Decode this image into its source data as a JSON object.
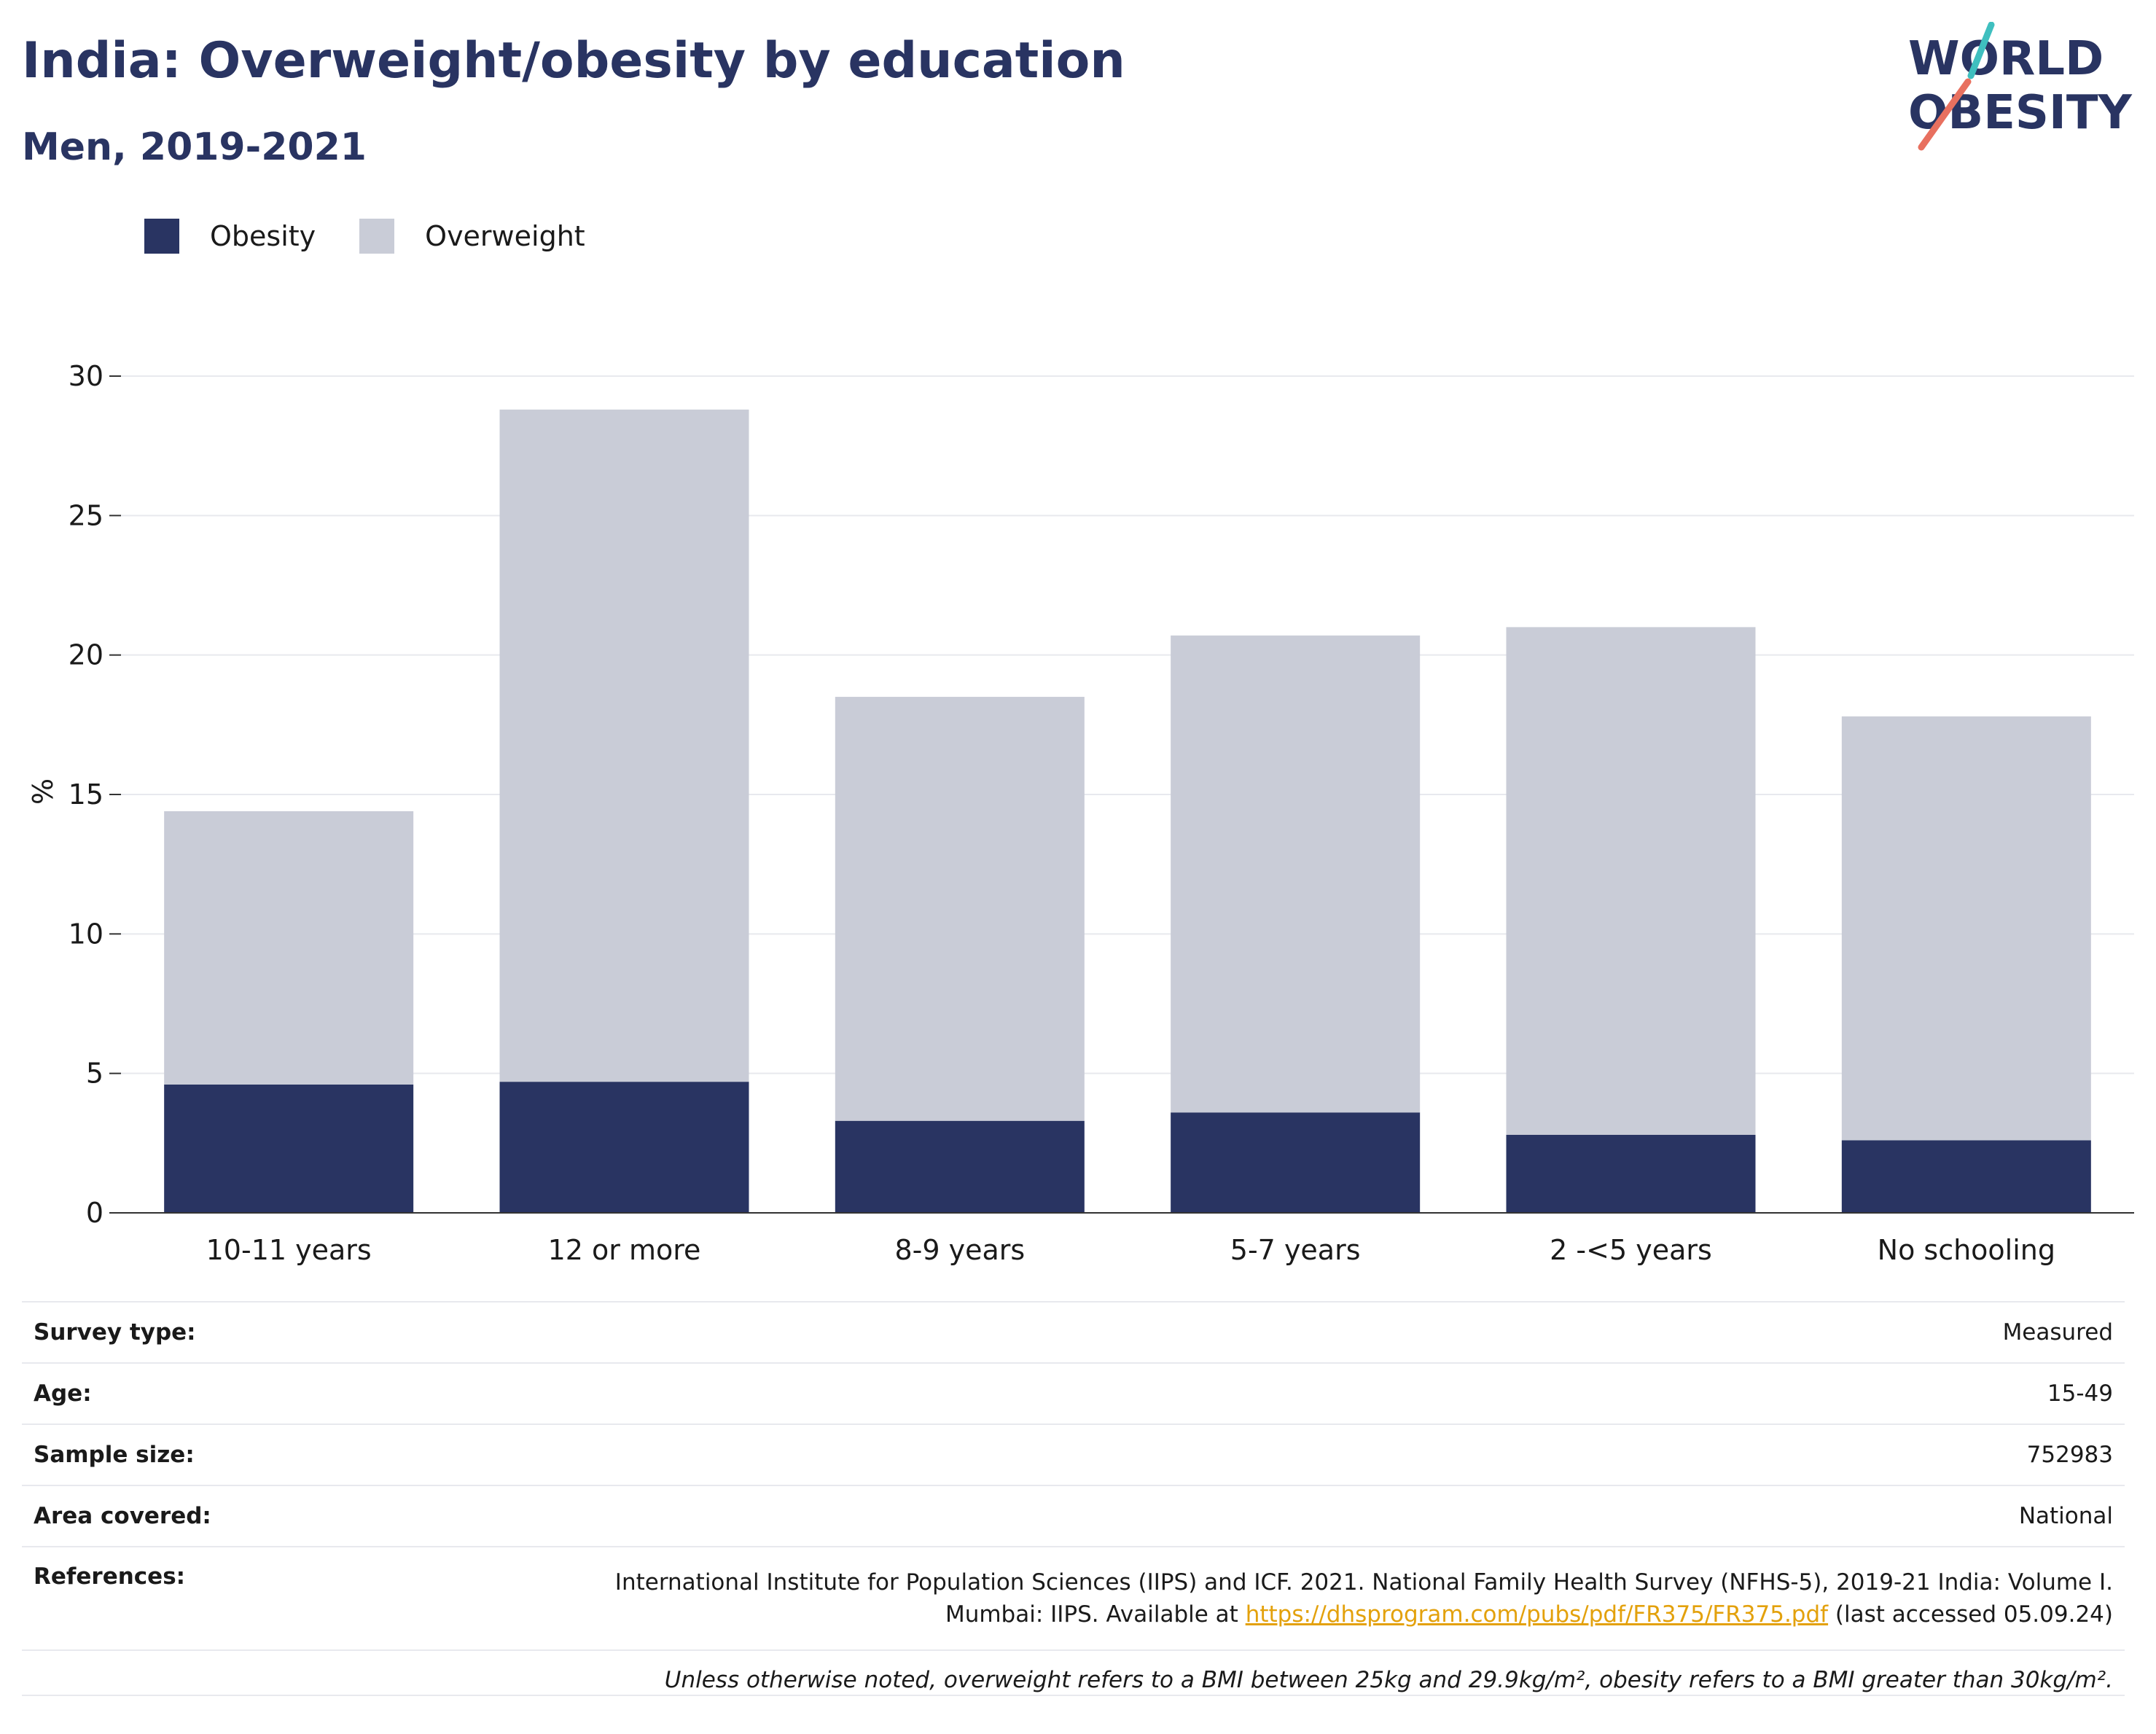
{
  "title": "India: Overweight/obesity by education",
  "subtitle": "Men, 2019-2021",
  "logo": {
    "line1": "WORLD",
    "line2": "OBESITY",
    "accent_teal": "#3fbfbf",
    "accent_coral": "#e8705f"
  },
  "colors": {
    "obesity": "#293462",
    "overweight": "#c9ccd7",
    "title": "#293462",
    "link": "#e3a10c"
  },
  "legend": [
    {
      "label": "Obesity",
      "color": "#293462"
    },
    {
      "label": "Overweight",
      "color": "#c9ccd7"
    }
  ],
  "chart_data": {
    "type": "bar",
    "stacked": true,
    "categories": [
      "10-11 years",
      "12 or more",
      "8-9 years",
      "5-7 years",
      "2 -<5 years",
      "No schooling"
    ],
    "series": [
      {
        "name": "Obesity",
        "values": [
          4.6,
          4.7,
          3.3,
          3.6,
          2.8,
          2.6
        ]
      },
      {
        "name": "Overweight",
        "values": [
          9.8,
          24.1,
          15.2,
          17.1,
          18.2,
          15.2
        ]
      }
    ],
    "ylabel": "%",
    "ylim": [
      0,
      30
    ],
    "yticks": [
      "0",
      "5",
      "10",
      "15",
      "20",
      "25",
      "30"
    ],
    "grid": true,
    "legend_position": "top-left"
  },
  "info": {
    "rows": [
      {
        "label": "Survey type:",
        "value": "Measured"
      },
      {
        "label": "Age:",
        "value": "15-49"
      },
      {
        "label": "Sample size:",
        "value": "752983"
      },
      {
        "label": "Area covered:",
        "value": "National"
      }
    ],
    "references_label": "References:",
    "references_line1": "International Institute for Population Sciences (IIPS) and ICF. 2021. National Family Health Survey (NFHS-5), 2019-21 India: Volume I.",
    "references_line2_pre": "Mumbai: IIPS. Available at ",
    "references_link": "https://dhsprogram.com/pubs/pdf/FR375/FR375.pdf",
    "references_line2_post": " (last accessed 05.09.24)",
    "note": "Unless otherwise noted, overweight refers to a BMI between 25kg and 29.9kg/m², obesity refers to a BMI greater than 30kg/m²."
  }
}
